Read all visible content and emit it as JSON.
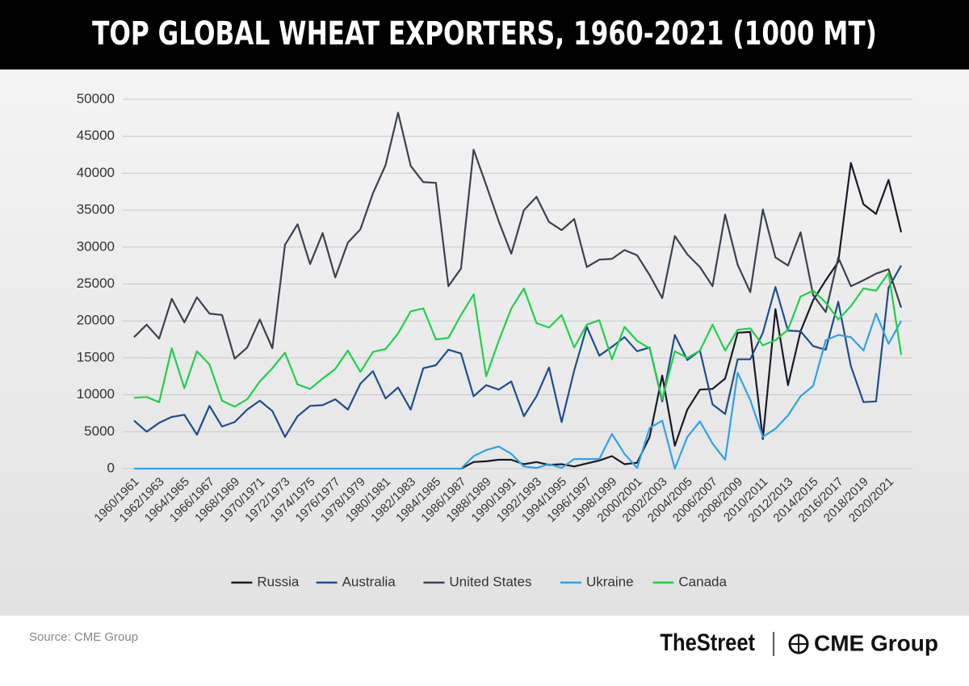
{
  "chart_data": {
    "type": "line",
    "title": "TOP GLOBAL WHEAT EXPORTERS, 1960-2021 (1000 MT)",
    "source": "Source: CME Group",
    "logos": [
      "TheStreet",
      "CME Group"
    ],
    "categories": [
      "1960/1961",
      null,
      "1962/1963",
      null,
      "1964/1965",
      null,
      "1966/1967",
      null,
      "1968/1969",
      null,
      "1970/1971",
      null,
      "1972/1973",
      null,
      "1974/1975",
      null,
      "1976/1977",
      null,
      "1978/1979",
      null,
      "1980/1981",
      null,
      "1982/1983",
      null,
      "1984/1985",
      null,
      "1986/1987",
      null,
      "1988/1989",
      null,
      "1990/1991",
      null,
      "1992/1993",
      null,
      "1994/1995",
      null,
      "1996/1997",
      null,
      "1998/1999",
      null,
      "2000/2001",
      null,
      "2002/2003",
      null,
      "2004/2005",
      null,
      "2006/2007",
      null,
      "2008/2009",
      null,
      "2010/2011",
      null,
      "2012/2013",
      null,
      "2014/2015",
      null,
      "2016/2017",
      null,
      "2018/2019",
      null,
      "2020/2021",
      null
    ],
    "series": [
      {
        "name": "Russia",
        "color": "#161b26",
        "values": [
          null,
          null,
          null,
          null,
          null,
          null,
          null,
          null,
          null,
          null,
          null,
          null,
          null,
          null,
          null,
          null,
          null,
          null,
          null,
          null,
          null,
          null,
          null,
          null,
          null,
          null,
          0,
          900,
          1000,
          1200,
          1200,
          600,
          900,
          500,
          600,
          300,
          700,
          1100,
          1700,
          600,
          800,
          4300,
          12600,
          3100,
          8000,
          10700,
          10800,
          12200,
          18400,
          18500,
          4000,
          21600,
          11300,
          18600,
          22800,
          25500,
          28000,
          41400,
          35800,
          34500,
          39100,
          32000
        ]
      },
      {
        "name": "Australia",
        "color": "#1f4e8c",
        "values": [
          6500,
          5000,
          6200,
          7000,
          7300,
          4600,
          8500,
          5700,
          6300,
          8000,
          9200,
          7800,
          4300,
          7100,
          8500,
          8600,
          9400,
          8000,
          11500,
          13200,
          9500,
          11000,
          8000,
          13600,
          14000,
          16100,
          15600,
          9800,
          11300,
          10700,
          11800,
          7100,
          9800,
          13700,
          6300,
          13300,
          19200,
          15300,
          16500,
          17800,
          15900,
          16400,
          9100,
          18100,
          14700,
          16000,
          8700,
          7400,
          14800,
          14800,
          18400,
          24600,
          18700,
          18600,
          16600,
          16100,
          22600,
          13900,
          9000,
          9100,
          24500,
          27500
        ]
      },
      {
        "name": "United States",
        "color": "#3a4350",
        "values": [
          17800,
          19500,
          17600,
          23000,
          19800,
          23200,
          21000,
          20800,
          14900,
          16400,
          20200,
          16300,
          30300,
          33100,
          27700,
          31900,
          25900,
          30600,
          32400,
          37300,
          41100,
          48200,
          41000,
          38800,
          38700,
          24700,
          27100,
          43200,
          38400,
          33500,
          29100,
          35000,
          36800,
          33400,
          32300,
          33800,
          27300,
          28300,
          28400,
          29600,
          28900,
          26200,
          23100,
          31500,
          29000,
          27300,
          24700,
          34400,
          27600,
          23900,
          35100,
          28600,
          27500,
          32000,
          23500,
          21200,
          28600,
          24700,
          25500,
          26400,
          27000,
          21800
        ]
      },
      {
        "name": "Ukraine",
        "color": "#2ea3e8",
        "values": [
          0,
          0,
          0,
          0,
          0,
          0,
          0,
          0,
          0,
          0,
          0,
          0,
          0,
          0,
          0,
          0,
          0,
          0,
          0,
          0,
          0,
          0,
          0,
          0,
          0,
          0,
          0,
          1700,
          2500,
          3000,
          2000,
          300,
          100,
          600,
          100,
          1300,
          1300,
          1300,
          4700,
          2000,
          100,
          5500,
          6500,
          0,
          4300,
          6400,
          3400,
          1200,
          13000,
          9300,
          4300,
          5400,
          7200,
          9800,
          11200,
          17400,
          18100,
          17800,
          16000,
          21000,
          16900,
          20000
        ]
      },
      {
        "name": "Canada",
        "color": "#1ed14b",
        "values": [
          9600,
          9700,
          9000,
          16300,
          10900,
          15900,
          14100,
          9200,
          8400,
          9400,
          11800,
          13600,
          15700,
          11400,
          10800,
          12200,
          13500,
          16000,
          13100,
          15800,
          16200,
          18300,
          21300,
          21700,
          17500,
          17700,
          20800,
          23600,
          12500,
          17300,
          21700,
          24400,
          19700,
          19100,
          20800,
          16400,
          19500,
          20100,
          14800,
          19200,
          17300,
          16300,
          9400,
          15900,
          15000,
          16000,
          19500,
          16000,
          18800,
          19000,
          16700,
          17400,
          18800,
          23300,
          24100,
          22500,
          20200,
          22000,
          24400,
          24100,
          26500,
          15400
        ]
      }
    ],
    "ylim": [
      0,
      50000
    ],
    "yticks": [
      0,
      5000,
      10000,
      15000,
      20000,
      25000,
      30000,
      35000,
      40000,
      45000,
      50000
    ],
    "grid": true,
    "legend": "bottom"
  }
}
